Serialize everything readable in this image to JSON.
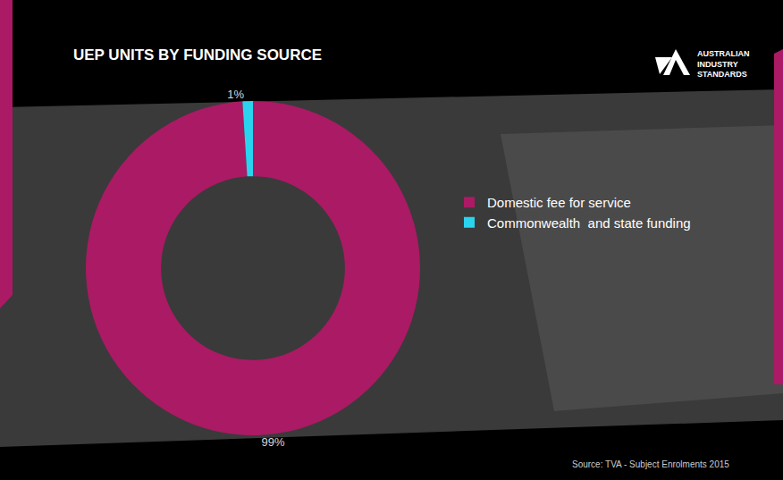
{
  "chart_data": {
    "type": "pie",
    "title": "UEP UNITS BY FUNDING SOURCE",
    "categories": [
      "Domestic fee for service",
      "Commonwealth  and state funding"
    ],
    "values": [
      99,
      1
    ],
    "value_labels": [
      "99%",
      "1%"
    ],
    "colors": [
      "#ab1a64",
      "#2ad4ef"
    ],
    "data_labels": true,
    "legend": "right",
    "logo_text": [
      "AUSTRALIAN",
      "INDUSTRY",
      "STANDARDS"
    ],
    "annotations": [
      "Source: TVA - Subject Enrolments 2015"
    ]
  }
}
